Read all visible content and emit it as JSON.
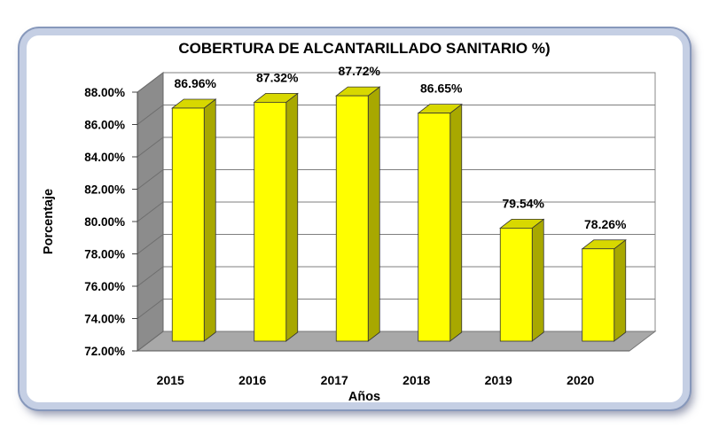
{
  "chart_data": {
    "type": "bar",
    "title": "COBERTURA DE ALCANTARILLADO SANITARIO %)",
    "xlabel": "Años",
    "ylabel": "Porcentaje",
    "categories": [
      "2015",
      "2016",
      "2017",
      "2018",
      "2019",
      "2020"
    ],
    "values": [
      86.96,
      87.32,
      87.72,
      86.65,
      79.54,
      78.26
    ],
    "data_labels": [
      "86.96%",
      "87.32%",
      "87.72%",
      "86.65%",
      "79.54%",
      "78.26%"
    ],
    "yticks": [
      "72.00%",
      "74.00%",
      "76.00%",
      "78.00%",
      "80.00%",
      "82.00%",
      "84.00%",
      "86.00%",
      "88.00%"
    ],
    "ylim": [
      72,
      88
    ],
    "grid": true,
    "bar_color": "#ffff00",
    "bar_side_color": "#a8a800",
    "bar_top_color": "#d8d800",
    "wall_color": "#ffffff",
    "floor_color": "#a8a8a8"
  }
}
